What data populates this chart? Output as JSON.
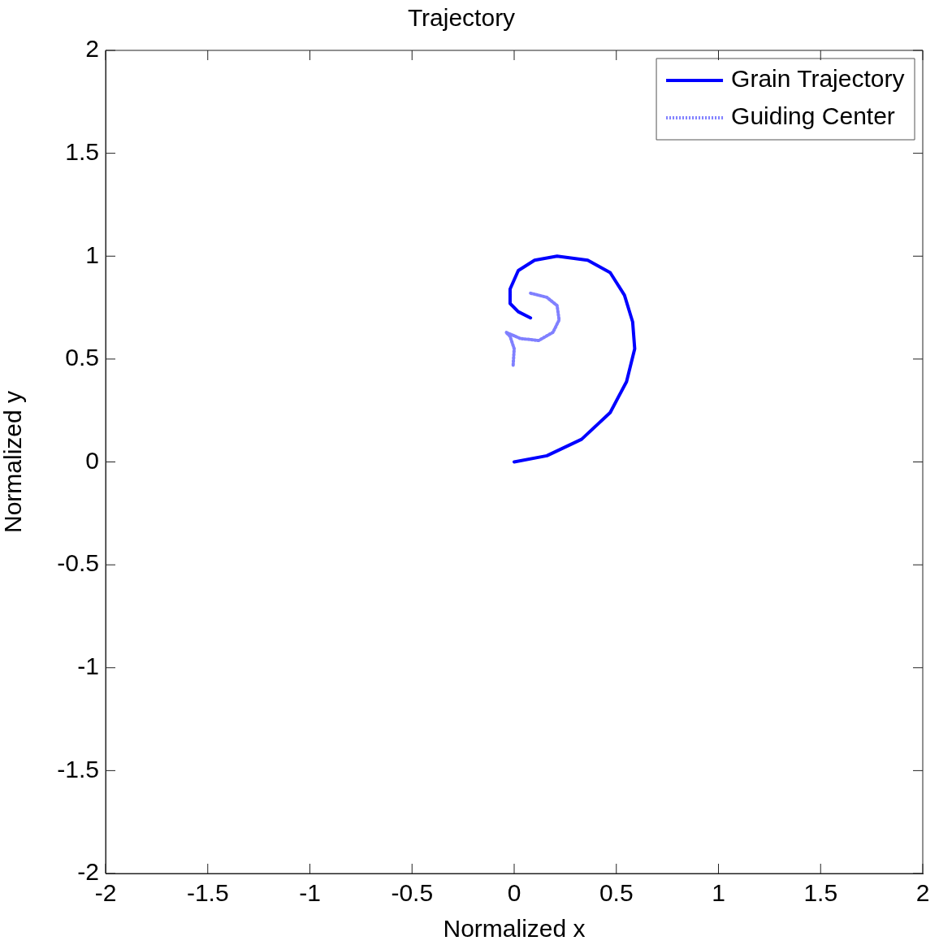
{
  "chart_data": {
    "type": "line",
    "title": "Trajectory",
    "xlabel": "Normalized x",
    "ylabel": "Normalized y",
    "xlim": [
      -2,
      2
    ],
    "xticks": [
      -2,
      -1.5,
      -1,
      -0.5,
      0,
      0.5,
      1,
      1.5,
      2
    ],
    "ylim": [
      -2,
      2
    ],
    "yticks": [
      -2,
      -1.5,
      -1,
      -0.5,
      0,
      0.5,
      1,
      1.5,
      2
    ],
    "grid": false,
    "legend": "top right",
    "marker": "none",
    "series": [
      {
        "name": "Grain Trajectory",
        "color": "#0000ff",
        "line_style": "solid",
        "x": [
          0,
          0.16,
          0.33,
          0.47,
          0.55,
          0.59,
          0.58,
          0.54,
          0.47,
          0.36,
          0.21,
          0.1,
          0.02,
          -0.02,
          -0.02,
          0.02,
          0.08
        ],
        "values": [
          0,
          0.03,
          0.11,
          0.24,
          0.39,
          0.55,
          0.68,
          0.81,
          0.92,
          0.98,
          1.0,
          0.98,
          0.93,
          0.84,
          0.77,
          0.73,
          0.7
        ]
      },
      {
        "name": "Guiding Center",
        "color": "#8080ff",
        "line_style": "dotted",
        "x": [
          -0.005,
          0,
          -0.02,
          -0.04,
          0.03,
          0.12,
          0.19,
          0.22,
          0.21,
          0.16,
          0.08
        ],
        "values": [
          0.47,
          0.55,
          0.61,
          0.63,
          0.6,
          0.59,
          0.63,
          0.69,
          0.76,
          0.8,
          0.82
        ]
      }
    ]
  }
}
